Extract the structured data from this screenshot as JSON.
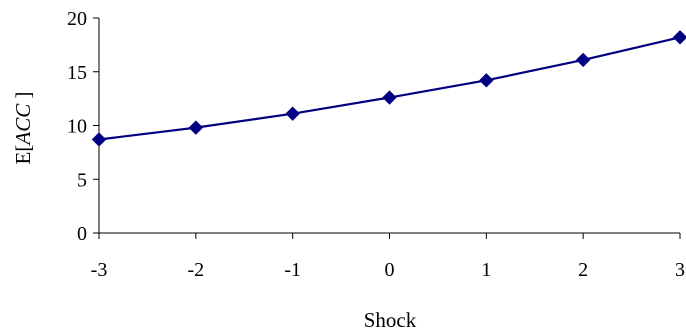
{
  "chart_data": {
    "type": "line",
    "x": [
      -3,
      -2,
      -1,
      0,
      1,
      2,
      3
    ],
    "series": [
      {
        "values": [
          8.7,
          9.8,
          11.1,
          12.6,
          14.2,
          16.1,
          18.2
        ],
        "color": "#000080",
        "marker": "diamond"
      }
    ],
    "xlabel": "Shock",
    "ylabel_prefix": "E[",
    "ylabel_italic": "ACC",
    "ylabel_suffix": " ]",
    "xlim": [
      -3,
      3
    ],
    "ylim": [
      0,
      20
    ],
    "xticks": [
      "-3",
      "-2",
      "-1",
      "0",
      "1",
      "2",
      "3"
    ],
    "yticks": [
      "0",
      "5",
      "10",
      "15",
      "20"
    ],
    "grid": false,
    "legend": "none"
  }
}
